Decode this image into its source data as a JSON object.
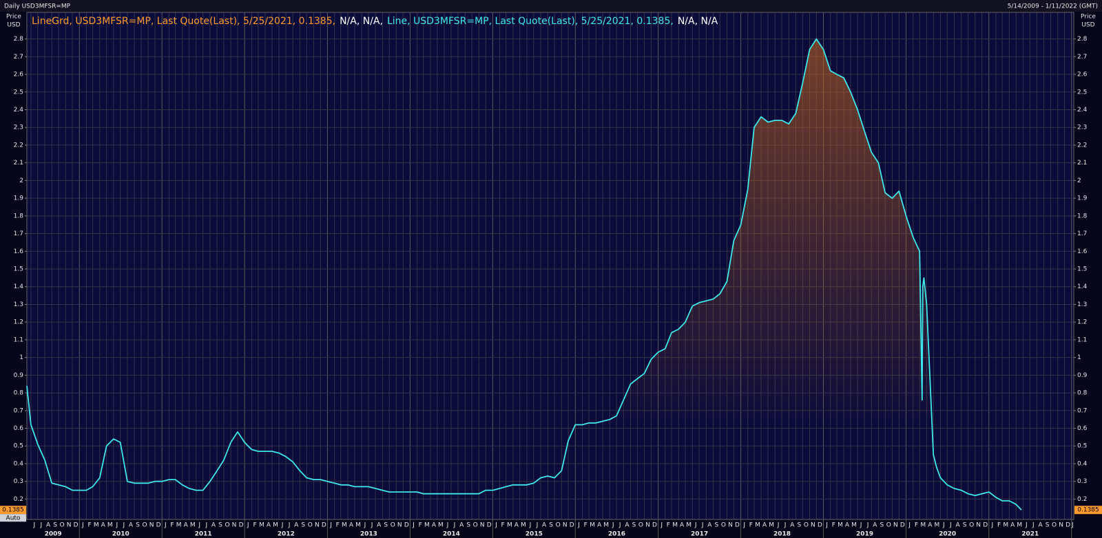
{
  "chart_data": {
    "type": "line",
    "title": "Daily USD3MFSR=MP",
    "date_range": "5/14/2009 - 1/11/2022 (GMT)",
    "y_axis_label": [
      "Price",
      "USD"
    ],
    "scale_mode": "Auto",
    "legend": [
      {
        "text": "LineGrd, USD3MFSR=MP, Last Quote(Last), 5/25/2021, 0.1385,",
        "color": "#ff9a2e"
      },
      {
        "text": "N/A, N/A,",
        "color": "#ffffff"
      },
      {
        "text": "Line, USD3MFSR=MP, Last Quote(Last), 5/25/2021, 0.1385,",
        "color": "#3ee8e8"
      },
      {
        "text": "N/A, N/A",
        "color": "#ffffff"
      }
    ],
    "xlim": [
      "2009-05-14",
      "2022-01-11"
    ],
    "month_letters": [
      "J",
      "F",
      "M",
      "A",
      "M",
      "J",
      "J",
      "A",
      "S",
      "O",
      "N",
      "D"
    ],
    "years": [
      2009,
      2010,
      2011,
      2012,
      2013,
      2014,
      2015,
      2016,
      2017,
      2018,
      2019,
      2020,
      2021
    ],
    "ylim": [
      0.085,
      2.95
    ],
    "yticks": [
      0.2,
      0.3,
      0.4,
      0.5,
      0.6,
      0.7,
      0.8,
      0.9,
      1,
      1.1,
      1.2,
      1.3,
      1.4,
      1.5,
      1.6,
      1.7,
      1.8,
      1.9,
      2,
      2.1,
      2.2,
      2.3,
      2.4,
      2.5,
      2.6,
      2.7,
      2.8
    ],
    "grid": true,
    "series": [
      {
        "color": "#3ee8e8",
        "fill_color": "#c0641e",
        "x": [
          "2009-05-14",
          "2009-06",
          "2009-07",
          "2009-08",
          "2009-09",
          "2009-10",
          "2009-11",
          "2009-12",
          "2010-01",
          "2010-02",
          "2010-03",
          "2010-04",
          "2010-05",
          "2010-06",
          "2010-07",
          "2010-08",
          "2010-09",
          "2010-10",
          "2010-11",
          "2010-12",
          "2011-01",
          "2011-02",
          "2011-03",
          "2011-04",
          "2011-05",
          "2011-06",
          "2011-07",
          "2011-08",
          "2011-09",
          "2011-10",
          "2011-11",
          "2011-12",
          "2012-01",
          "2012-02",
          "2012-03",
          "2012-04",
          "2012-05",
          "2012-06",
          "2012-07",
          "2012-08",
          "2012-09",
          "2012-10",
          "2012-11",
          "2012-12",
          "2013-01",
          "2013-02",
          "2013-03",
          "2013-04",
          "2013-05",
          "2013-06",
          "2013-07",
          "2013-08",
          "2013-09",
          "2013-10",
          "2013-11",
          "2013-12",
          "2014-01",
          "2014-02",
          "2014-03",
          "2014-04",
          "2014-05",
          "2014-06",
          "2014-07",
          "2014-08",
          "2014-09",
          "2014-10",
          "2014-11",
          "2014-12",
          "2015-01",
          "2015-02",
          "2015-03",
          "2015-04",
          "2015-05",
          "2015-06",
          "2015-07",
          "2015-08",
          "2015-09",
          "2015-10",
          "2015-11",
          "2015-12",
          "2016-01",
          "2016-02",
          "2016-03",
          "2016-04",
          "2016-05",
          "2016-06",
          "2016-07",
          "2016-08",
          "2016-09",
          "2016-10",
          "2016-11",
          "2016-12",
          "2017-01",
          "2017-02",
          "2017-03",
          "2017-04",
          "2017-05",
          "2017-06",
          "2017-07",
          "2017-08",
          "2017-09",
          "2017-10",
          "2017-11",
          "2017-12",
          "2018-01",
          "2018-02",
          "2018-03",
          "2018-04",
          "2018-05",
          "2018-06",
          "2018-07",
          "2018-08",
          "2018-09",
          "2018-10",
          "2018-11",
          "2018-12",
          "2019-01",
          "2019-02",
          "2019-03",
          "2019-04",
          "2019-05",
          "2019-06",
          "2019-07",
          "2019-08",
          "2019-09",
          "2019-10",
          "2019-11",
          "2019-12",
          "2020-01",
          "2020-02",
          "2020-03-01",
          "2020-03-12",
          "2020-03-15",
          "2020-03-20",
          "2020-04-01",
          "2020-04-15",
          "2020-05-01",
          "2020-05-15",
          "2020-06",
          "2020-07",
          "2020-08",
          "2020-09",
          "2020-10",
          "2020-11",
          "2020-12",
          "2021-01",
          "2021-02",
          "2021-03",
          "2021-04",
          "2021-05-01",
          "2021-05-25"
        ],
        "values": [
          0.84,
          0.62,
          0.51,
          0.42,
          0.29,
          0.28,
          0.27,
          0.25,
          0.25,
          0.25,
          0.27,
          0.32,
          0.5,
          0.54,
          0.52,
          0.3,
          0.29,
          0.29,
          0.29,
          0.3,
          0.3,
          0.31,
          0.31,
          0.28,
          0.26,
          0.25,
          0.25,
          0.3,
          0.36,
          0.42,
          0.52,
          0.58,
          0.52,
          0.48,
          0.47,
          0.47,
          0.47,
          0.46,
          0.44,
          0.41,
          0.36,
          0.32,
          0.31,
          0.31,
          0.3,
          0.29,
          0.28,
          0.28,
          0.27,
          0.27,
          0.27,
          0.26,
          0.25,
          0.24,
          0.24,
          0.24,
          0.24,
          0.24,
          0.23,
          0.23,
          0.23,
          0.23,
          0.23,
          0.23,
          0.23,
          0.23,
          0.23,
          0.25,
          0.25,
          0.26,
          0.27,
          0.28,
          0.28,
          0.28,
          0.29,
          0.32,
          0.33,
          0.32,
          0.36,
          0.53,
          0.62,
          0.62,
          0.63,
          0.63,
          0.64,
          0.65,
          0.67,
          0.76,
          0.85,
          0.88,
          0.91,
          0.99,
          1.03,
          1.05,
          1.14,
          1.16,
          1.2,
          1.29,
          1.31,
          1.32,
          1.33,
          1.36,
          1.43,
          1.66,
          1.75,
          1.95,
          2.3,
          2.36,
          2.33,
          2.34,
          2.34,
          2.32,
          2.38,
          2.55,
          2.74,
          2.8,
          2.74,
          2.62,
          2.6,
          2.58,
          2.5,
          2.4,
          2.28,
          2.16,
          2.1,
          1.93,
          1.9,
          1.94,
          1.8,
          1.68,
          1.6,
          0.76,
          1.4,
          1.45,
          1.3,
          0.9,
          0.45,
          0.38,
          0.32,
          0.28,
          0.26,
          0.25,
          0.23,
          0.22,
          0.23,
          0.24,
          0.21,
          0.19,
          0.19,
          0.17,
          0.1385
        ]
      }
    ]
  }
}
